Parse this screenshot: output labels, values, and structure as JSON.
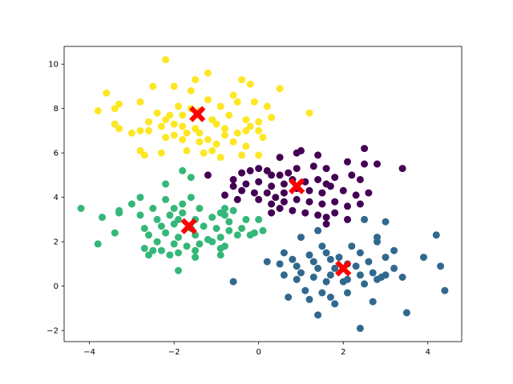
{
  "chart_data": {
    "type": "scatter",
    "title": "",
    "xlabel": "",
    "ylabel": "",
    "xlim": [
      -4.6,
      4.8
    ],
    "ylim": [
      -2.5,
      10.8
    ],
    "xticks": [
      -4,
      -2,
      0,
      2,
      4
    ],
    "yticks": [
      -2,
      0,
      2,
      4,
      6,
      8,
      10
    ],
    "grid": false,
    "legend": "none",
    "colors": {
      "yellow": "#fde725",
      "purple": "#440154",
      "teal": "#31688e",
      "green": "#35b779",
      "centroid": "#ff0000"
    },
    "series": [
      {
        "color_key": "yellow",
        "points": [
          [
            -2.2,
            10.2
          ],
          [
            -1.5,
            9.3
          ],
          [
            -1.2,
            9.6
          ],
          [
            -0.4,
            9.3
          ],
          [
            -0.2,
            9.1
          ],
          [
            -2.5,
            9.0
          ],
          [
            -2.0,
            9.0
          ],
          [
            -1.6,
            8.8
          ],
          [
            -0.6,
            8.6
          ],
          [
            0.5,
            8.9
          ],
          [
            -3.6,
            8.7
          ],
          [
            -3.3,
            8.2
          ],
          [
            -3.4,
            8.0
          ],
          [
            -2.8,
            8.3
          ],
          [
            -1.9,
            8.1
          ],
          [
            -1.6,
            8.0
          ],
          [
            -1.2,
            8.4
          ],
          [
            -0.9,
            8.1
          ],
          [
            -0.5,
            8.3
          ],
          [
            -0.1,
            8.3
          ],
          [
            0.2,
            8.1
          ],
          [
            -3.8,
            7.9
          ],
          [
            -2.4,
            7.8
          ],
          [
            -2.1,
            7.7
          ],
          [
            -1.8,
            7.7
          ],
          [
            -1.4,
            7.9
          ],
          [
            -1.1,
            7.5
          ],
          [
            -0.7,
            7.7
          ],
          [
            -0.3,
            7.5
          ],
          [
            0.0,
            7.4
          ],
          [
            0.3,
            7.6
          ],
          [
            1.2,
            7.8
          ],
          [
            -2.6,
            7.4
          ],
          [
            -2.2,
            7.5
          ],
          [
            -2.0,
            7.3
          ],
          [
            -1.8,
            7.2
          ],
          [
            -1.5,
            7.1
          ],
          [
            -1.0,
            7.3
          ],
          [
            -0.8,
            7.1
          ],
          [
            -0.3,
            7.0
          ],
          [
            -3.4,
            7.3
          ],
          [
            -3.3,
            7.1
          ],
          [
            -2.8,
            7.0
          ],
          [
            -2.6,
            7.0
          ],
          [
            -2.3,
            7.2
          ],
          [
            -2.0,
            6.8
          ],
          [
            -1.7,
            6.9
          ],
          [
            -1.4,
            6.9
          ],
          [
            -1.2,
            6.6
          ],
          [
            -0.8,
            6.8
          ],
          [
            -0.5,
            6.9
          ],
          [
            0.0,
            7.0
          ],
          [
            -3.0,
            6.9
          ],
          [
            -2.2,
            6.7
          ],
          [
            -1.8,
            6.6
          ],
          [
            -1.4,
            6.5
          ],
          [
            -1.0,
            6.4
          ],
          [
            -0.6,
            6.5
          ],
          [
            -0.3,
            6.3
          ],
          [
            0.1,
            6.7
          ],
          [
            -2.3,
            6.0
          ],
          [
            -1.7,
            6.1
          ],
          [
            -1.3,
            6.0
          ],
          [
            -0.9,
            5.8
          ],
          [
            -0.4,
            5.9
          ],
          [
            -2.8,
            6.1
          ],
          [
            -2.7,
            5.9
          ],
          [
            0.0,
            5.9
          ],
          [
            -1.1,
            6.1
          ],
          [
            -0.2,
            7.2
          ]
        ]
      },
      {
        "color_key": "purple",
        "points": [
          [
            0.5,
            5.8
          ],
          [
            0.9,
            6.0
          ],
          [
            1.0,
            6.1
          ],
          [
            1.4,
            5.9
          ],
          [
            2.1,
            5.6
          ],
          [
            2.5,
            6.2
          ],
          [
            -0.6,
            4.8
          ],
          [
            -0.4,
            5.1
          ],
          [
            -0.2,
            5.2
          ],
          [
            0.0,
            5.3
          ],
          [
            0.2,
            5.2
          ],
          [
            0.3,
            5.0
          ],
          [
            0.5,
            5.0
          ],
          [
            0.7,
            5.1
          ],
          [
            0.9,
            5.3
          ],
          [
            1.3,
            5.4
          ],
          [
            1.6,
            5.3
          ],
          [
            2.5,
            5.5
          ],
          [
            2.8,
            5.5
          ],
          [
            3.4,
            5.3
          ],
          [
            -1.2,
            5.0
          ],
          [
            -0.6,
            4.5
          ],
          [
            -0.3,
            4.6
          ],
          [
            0.0,
            4.7
          ],
          [
            0.3,
            4.5
          ],
          [
            0.6,
            4.6
          ],
          [
            0.8,
            4.8
          ],
          [
            1.1,
            4.7
          ],
          [
            1.4,
            4.8
          ],
          [
            1.6,
            4.6
          ],
          [
            1.8,
            4.9
          ],
          [
            2.2,
            5.0
          ],
          [
            2.4,
            4.8
          ],
          [
            -0.4,
            4.3
          ],
          [
            -0.1,
            4.2
          ],
          [
            0.2,
            4.2
          ],
          [
            0.4,
            4.0
          ],
          [
            0.6,
            4.2
          ],
          [
            0.9,
            4.4
          ],
          [
            1.2,
            4.3
          ],
          [
            1.5,
            4.2
          ],
          [
            1.7,
            4.5
          ],
          [
            2.0,
            4.3
          ],
          [
            2.3,
            4.1
          ],
          [
            2.6,
            4.2
          ],
          [
            -0.8,
            4.1
          ],
          [
            -0.5,
            3.9
          ],
          [
            0.0,
            3.9
          ],
          [
            0.3,
            3.7
          ],
          [
            0.6,
            3.8
          ],
          [
            0.9,
            3.9
          ],
          [
            1.2,
            3.8
          ],
          [
            1.5,
            3.7
          ],
          [
            1.8,
            3.8
          ],
          [
            2.1,
            3.6
          ],
          [
            2.4,
            3.7
          ],
          [
            0.5,
            3.5
          ],
          [
            0.8,
            3.4
          ],
          [
            1.1,
            3.3
          ],
          [
            1.4,
            3.2
          ],
          [
            1.6,
            3.1
          ],
          [
            1.8,
            3.3
          ],
          [
            2.1,
            3.0
          ],
          [
            0.3,
            3.3
          ],
          [
            1.6,
            2.8
          ]
        ]
      },
      {
        "color_key": "teal",
        "points": [
          [
            2.5,
            3.0
          ],
          [
            3.0,
            2.9
          ],
          [
            4.2,
            2.3
          ],
          [
            2.8,
            2.2
          ],
          [
            1.0,
            2.2
          ],
          [
            2.2,
            1.8
          ],
          [
            2.8,
            2.0
          ],
          [
            1.4,
            2.5
          ],
          [
            1.5,
            1.8
          ],
          [
            0.6,
            1.5
          ],
          [
            1.2,
            1.4
          ],
          [
            1.6,
            1.5
          ],
          [
            2.4,
            1.5
          ],
          [
            3.2,
            1.6
          ],
          [
            3.9,
            1.3
          ],
          [
            0.2,
            1.1
          ],
          [
            0.8,
            1.2
          ],
          [
            1.3,
            1.1
          ],
          [
            1.7,
            1.2
          ],
          [
            2.1,
            1.0
          ],
          [
            2.6,
            1.1
          ],
          [
            3.0,
            1.3
          ],
          [
            0.9,
            0.9
          ],
          [
            1.4,
            0.8
          ],
          [
            1.8,
            0.8
          ],
          [
            2.3,
            0.9
          ],
          [
            2.7,
            0.6
          ],
          [
            3.2,
            0.8
          ],
          [
            4.3,
            0.9
          ],
          [
            0.6,
            0.5
          ],
          [
            1.0,
            0.6
          ],
          [
            1.3,
            0.4
          ],
          [
            1.7,
            0.5
          ],
          [
            2.1,
            0.3
          ],
          [
            2.4,
            0.5
          ],
          [
            2.9,
            0.4
          ],
          [
            3.4,
            0.4
          ],
          [
            0.9,
            0.3
          ],
          [
            1.6,
            0.2
          ],
          [
            2.0,
            0.2
          ],
          [
            2.5,
            0.1
          ],
          [
            2.8,
            0.3
          ],
          [
            -0.6,
            0.2
          ],
          [
            1.1,
            -0.2
          ],
          [
            1.5,
            -0.3
          ],
          [
            2.1,
            -0.3
          ],
          [
            2.7,
            -0.7
          ],
          [
            4.4,
            -0.2
          ],
          [
            0.7,
            -0.5
          ],
          [
            1.2,
            -0.6
          ],
          [
            1.7,
            -0.5
          ],
          [
            1.8,
            -0.8
          ],
          [
            3.5,
            -1.2
          ],
          [
            1.4,
            -1.3
          ],
          [
            2.4,
            -1.9
          ],
          [
            0.5,
            1.0
          ],
          [
            3.0,
            0.5
          ],
          [
            1.9,
            1.3
          ]
        ]
      },
      {
        "color_key": "green",
        "points": [
          [
            -1.8,
            5.2
          ],
          [
            -2.2,
            4.6
          ],
          [
            -1.6,
            4.9
          ],
          [
            -2.8,
            4.0
          ],
          [
            -2.2,
            3.9
          ],
          [
            -1.8,
            3.7
          ],
          [
            -1.6,
            4.0
          ],
          [
            -0.8,
            3.5
          ],
          [
            -3.0,
            3.7
          ],
          [
            -2.5,
            3.5
          ],
          [
            -2.0,
            3.5
          ],
          [
            -1.8,
            3.3
          ],
          [
            -1.4,
            3.5
          ],
          [
            -0.9,
            3.3
          ],
          [
            -0.6,
            3.4
          ],
          [
            -0.3,
            3.0
          ],
          [
            0.0,
            3.0
          ],
          [
            -3.3,
            3.3
          ],
          [
            -3.7,
            3.1
          ],
          [
            -2.8,
            3.2
          ],
          [
            -2.4,
            3.0
          ],
          [
            -2.1,
            3.2
          ],
          [
            -1.9,
            3.0
          ],
          [
            -1.5,
            3.0
          ],
          [
            -1.1,
            3.1
          ],
          [
            -0.8,
            3.2
          ],
          [
            -0.7,
            2.9
          ],
          [
            -2.7,
            2.6
          ],
          [
            -2.3,
            2.7
          ],
          [
            -2.0,
            2.8
          ],
          [
            -1.6,
            2.6
          ],
          [
            -1.3,
            2.7
          ],
          [
            -1.0,
            2.6
          ],
          [
            -0.7,
            2.5
          ],
          [
            -0.4,
            2.6
          ],
          [
            -0.1,
            2.4
          ],
          [
            -4.2,
            3.5
          ],
          [
            -3.4,
            2.4
          ],
          [
            -2.6,
            2.3
          ],
          [
            -2.2,
            2.4
          ],
          [
            -1.9,
            2.2
          ],
          [
            -1.5,
            2.3
          ],
          [
            -1.2,
            2.1
          ],
          [
            -0.9,
            2.2
          ],
          [
            -0.5,
            2.3
          ],
          [
            -0.2,
            2.3
          ],
          [
            0.1,
            2.5
          ],
          [
            -2.4,
            2.0
          ],
          [
            -2.0,
            1.9
          ],
          [
            -1.7,
            1.8
          ],
          [
            -1.4,
            1.9
          ],
          [
            -1.1,
            2.0
          ],
          [
            -0.8,
            1.8
          ],
          [
            -3.8,
            1.9
          ],
          [
            -2.7,
            1.7
          ],
          [
            -2.3,
            1.6
          ],
          [
            -1.9,
            1.5
          ],
          [
            -1.5,
            1.6
          ],
          [
            -0.9,
            1.7
          ],
          [
            -2.6,
            1.4
          ],
          [
            -2.1,
            1.4
          ],
          [
            -1.5,
            1.3
          ],
          [
            -0.9,
            1.4
          ],
          [
            -1.9,
            0.7
          ],
          [
            -3.3,
            3.4
          ],
          [
            -2.5,
            1.6
          ]
        ]
      }
    ],
    "centroids": [
      [
        -1.45,
        7.75
      ],
      [
        0.9,
        4.5
      ],
      [
        2.0,
        0.8
      ],
      [
        -1.65,
        2.7
      ]
    ]
  }
}
